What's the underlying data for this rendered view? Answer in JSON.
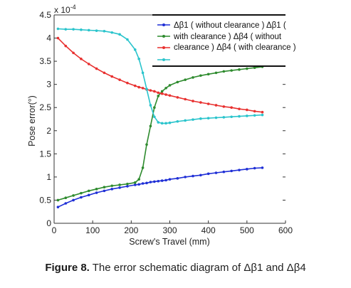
{
  "chart_data": {
    "type": "line",
    "xlabel": "Screw's Travel (mm)",
    "ylabel": "Pose error(°)",
    "exponent_label": "x 10",
    "exponent_power": "-4",
    "xlim": [
      0,
      600
    ],
    "ylim": [
      0,
      4.5
    ],
    "x_ticks": [
      "0",
      "100",
      "200",
      "300",
      "400",
      "500",
      "600"
    ],
    "y_ticks": [
      "0",
      "0.5",
      "1",
      "1.5",
      "2",
      "2.5",
      "3",
      "3.5",
      "4",
      "4.5"
    ],
    "grid": false,
    "legend_position": "top-right",
    "legend_lines": [
      "Δβ1 ( without clearance ) Δβ1 (",
      "with clearance ) Δβ4 ( without",
      "clearance ) Δβ4 ( with clearance )"
    ],
    "x": [
      10,
      30,
      50,
      70,
      90,
      110,
      130,
      150,
      170,
      190,
      210,
      220,
      230,
      240,
      250,
      260,
      270,
      280,
      290,
      300,
      320,
      340,
      360,
      380,
      400,
      420,
      440,
      460,
      480,
      500,
      520,
      540
    ],
    "series": [
      {
        "color": "#1f2fd6",
        "marker": "dot",
        "values": [
          0.35,
          0.43,
          0.5,
          0.56,
          0.61,
          0.66,
          0.7,
          0.74,
          0.77,
          0.8,
          0.83,
          0.84,
          0.86,
          0.87,
          0.89,
          0.9,
          0.91,
          0.92,
          0.93,
          0.95,
          0.97,
          1.0,
          1.02,
          1.04,
          1.07,
          1.09,
          1.11,
          1.13,
          1.15,
          1.17,
          1.19,
          1.2
        ]
      },
      {
        "color": "#2e8b2e",
        "marker": "dot",
        "values": [
          0.5,
          0.55,
          0.6,
          0.65,
          0.7,
          0.74,
          0.78,
          0.81,
          0.83,
          0.85,
          0.88,
          0.95,
          1.2,
          1.7,
          2.1,
          2.5,
          2.75,
          2.85,
          2.92,
          2.98,
          3.05,
          3.1,
          3.15,
          3.19,
          3.22,
          3.25,
          3.28,
          3.3,
          3.32,
          3.34,
          3.36,
          3.38
        ]
      },
      {
        "color": "#e8302f",
        "marker": "dot",
        "values": [
          4.0,
          3.83,
          3.68,
          3.55,
          3.44,
          3.34,
          3.25,
          3.17,
          3.1,
          3.03,
          2.97,
          2.94,
          2.92,
          2.89,
          2.87,
          2.85,
          2.82,
          2.8,
          2.78,
          2.76,
          2.72,
          2.68,
          2.64,
          2.61,
          2.58,
          2.55,
          2.52,
          2.5,
          2.47,
          2.45,
          2.42,
          2.4
        ]
      },
      {
        "color": "#2ac4cc",
        "marker": "dot",
        "values": [
          4.2,
          4.19,
          4.19,
          4.18,
          4.17,
          4.16,
          4.15,
          4.12,
          4.08,
          3.97,
          3.75,
          3.55,
          3.25,
          2.9,
          2.55,
          2.3,
          2.18,
          2.16,
          2.16,
          2.17,
          2.2,
          2.22,
          2.24,
          2.26,
          2.27,
          2.28,
          2.29,
          2.3,
          2.31,
          2.32,
          2.33,
          2.34
        ]
      }
    ]
  },
  "caption": {
    "label": "Figure 8.",
    "text": " The error schematic diagram of Δβ1 and Δβ4"
  }
}
